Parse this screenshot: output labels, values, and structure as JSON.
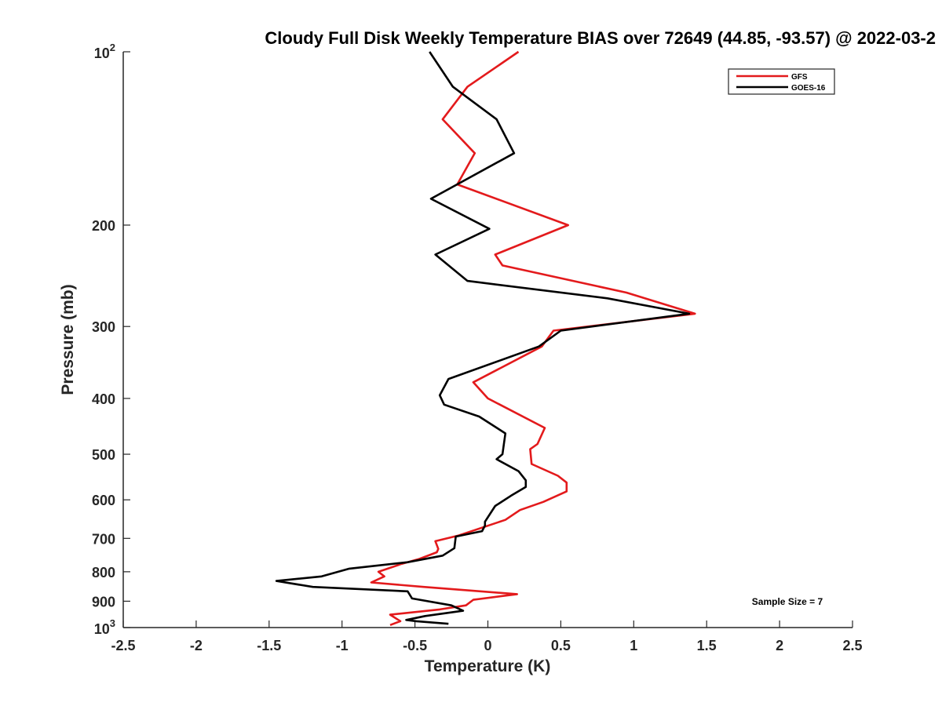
{
  "chart_data": {
    "type": "line",
    "title": "Cloudy Full Disk Weekly Temperature BIAS over 72649 (44.85, -93.57) @ 2022-03-2",
    "xlabel": "Temperature (K)",
    "ylabel": "Pressure (mb)",
    "xlim": [
      -2.5,
      2.5
    ],
    "ylim": [
      100,
      1000
    ],
    "y_scale": "log",
    "y_reversed": true,
    "grid": false,
    "legend_position": "top-right",
    "xticks": [
      -2.5,
      -2,
      -1.5,
      -1,
      -0.5,
      0,
      0.5,
      1,
      1.5,
      2,
      2.5
    ],
    "xtick_labels": [
      "-2.5",
      "-2",
      "-1.5",
      "-1",
      "-0.5",
      "0",
      "0.5",
      "1",
      "1.5",
      "2",
      "2.5"
    ],
    "yticks": [
      {
        "value": 100,
        "base": "10",
        "exp": "2"
      },
      {
        "value": 200,
        "label": "200"
      },
      {
        "value": 300,
        "label": "300"
      },
      {
        "value": 400,
        "label": "400"
      },
      {
        "value": 500,
        "label": "500"
      },
      {
        "value": 600,
        "label": "600"
      },
      {
        "value": 700,
        "label": "700"
      },
      {
        "value": 800,
        "label": "800"
      },
      {
        "value": 900,
        "label": "900"
      },
      {
        "value": 1000,
        "base": "10",
        "exp": "3"
      }
    ],
    "annotation": "Sample Size = 7",
    "series": [
      {
        "name": "GFS",
        "color": "#e31a1c",
        "points": [
          [
            0.21,
            100
          ],
          [
            -0.14,
            115
          ],
          [
            -0.31,
            131
          ],
          [
            -0.09,
            150
          ],
          [
            -0.21,
            170
          ],
          [
            0.55,
            200
          ],
          [
            0.05,
            225
          ],
          [
            0.1,
            235
          ],
          [
            0.95,
            262
          ],
          [
            1.42,
            285
          ],
          [
            0.45,
            305
          ],
          [
            0.37,
            325
          ],
          [
            -0.1,
            375
          ],
          [
            0.0,
            400
          ],
          [
            0.39,
            450
          ],
          [
            0.34,
            480
          ],
          [
            0.29,
            490
          ],
          [
            0.3,
            520
          ],
          [
            0.48,
            545
          ],
          [
            0.54,
            560
          ],
          [
            0.54,
            580
          ],
          [
            0.38,
            605
          ],
          [
            0.22,
            625
          ],
          [
            0.12,
            650
          ],
          [
            -0.2,
            692
          ],
          [
            -0.36,
            708
          ],
          [
            -0.34,
            730
          ],
          [
            -0.35,
            740
          ],
          [
            -0.47,
            760
          ],
          [
            -0.59,
            775
          ],
          [
            -0.75,
            800
          ],
          [
            -0.71,
            815
          ],
          [
            -0.8,
            835
          ],
          [
            -0.44,
            850
          ],
          [
            0.2,
            875
          ],
          [
            -0.1,
            895
          ],
          [
            -0.15,
            915
          ],
          [
            -0.33,
            930
          ],
          [
            -0.67,
            950
          ],
          [
            -0.6,
            975
          ],
          [
            -0.67,
            990
          ]
        ]
      },
      {
        "name": "GOES-16",
        "color": "#000000",
        "points": [
          [
            -0.4,
            100
          ],
          [
            -0.24,
            115
          ],
          [
            0.06,
            131
          ],
          [
            0.18,
            150
          ],
          [
            -0.39,
            180
          ],
          [
            0.01,
            203
          ],
          [
            -0.36,
            225
          ],
          [
            -0.14,
            250
          ],
          [
            0.82,
            268
          ],
          [
            1.38,
            285
          ],
          [
            0.5,
            305
          ],
          [
            0.35,
            325
          ],
          [
            -0.27,
            370
          ],
          [
            -0.33,
            395
          ],
          [
            -0.3,
            410
          ],
          [
            -0.06,
            430
          ],
          [
            0.12,
            460
          ],
          [
            0.11,
            480
          ],
          [
            0.1,
            500
          ],
          [
            0.06,
            510
          ],
          [
            0.21,
            535
          ],
          [
            0.26,
            555
          ],
          [
            0.26,
            570
          ],
          [
            0.16,
            590
          ],
          [
            0.05,
            615
          ],
          [
            -0.02,
            655
          ],
          [
            -0.02,
            665
          ],
          [
            -0.04,
            680
          ],
          [
            -0.22,
            695
          ],
          [
            -0.23,
            728
          ],
          [
            -0.31,
            750
          ],
          [
            -0.55,
            770
          ],
          [
            -0.95,
            790
          ],
          [
            -1.14,
            815
          ],
          [
            -1.45,
            830
          ],
          [
            -1.2,
            850
          ],
          [
            -0.55,
            865
          ],
          [
            -0.52,
            890
          ],
          [
            -0.25,
            915
          ],
          [
            -0.17,
            935
          ],
          [
            -0.43,
            955
          ],
          [
            -0.56,
            970
          ],
          [
            -0.49,
            975
          ],
          [
            -0.27,
            985
          ]
        ]
      }
    ]
  }
}
